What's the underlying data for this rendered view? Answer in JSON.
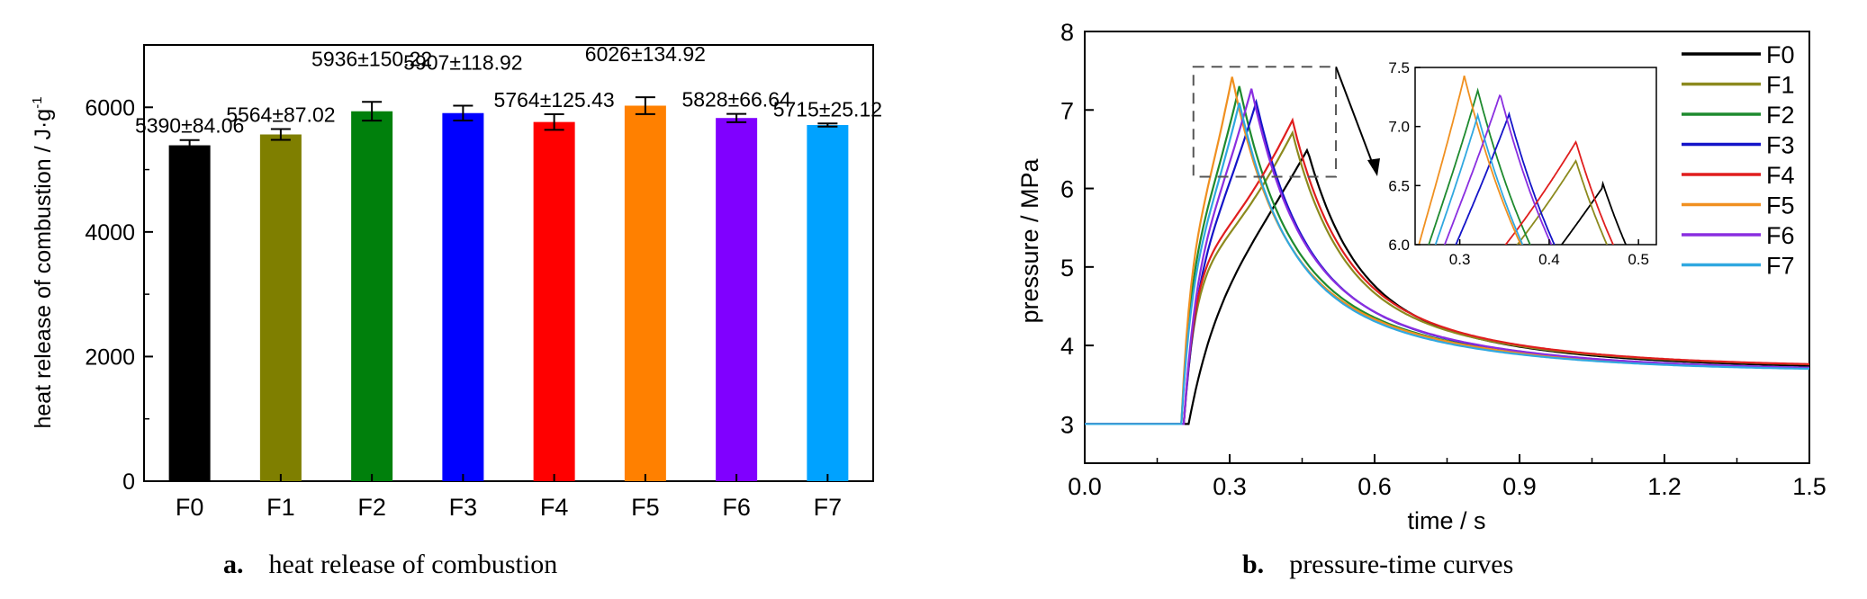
{
  "chart_data": [
    {
      "type": "bar",
      "caption_letter": "a.",
      "caption_text": "heat release of combustion",
      "ylabel": "heat release of combustion / J·g",
      "ylabel_sup": "-1",
      "ylim": [
        0,
        7000
      ],
      "yticks": [
        "0",
        "2000",
        "4000",
        "6000"
      ],
      "categories": [
        "F0",
        "F1",
        "F2",
        "F3",
        "F4",
        "F5",
        "F6",
        "F7"
      ],
      "values": [
        5390,
        5564,
        5936,
        5907,
        5764,
        6026,
        5828,
        5715
      ],
      "errors": [
        84.06,
        87.02,
        150.22,
        118.92,
        125.43,
        134.92,
        66.64,
        25.12
      ],
      "data_labels": [
        "5390±84.06",
        "5564±87.02",
        "5936±150.22",
        "5907±118.92",
        "5764±125.43",
        "6026±134.92",
        "5828±66.64",
        "5715±25.12"
      ],
      "colors": [
        "#000000",
        "#7f7f00",
        "#00800c",
        "#0000ff",
        "#ff0000",
        "#ff8000",
        "#8000ff",
        "#00a2ff"
      ],
      "grid": false
    },
    {
      "type": "line",
      "caption_letter": "b.",
      "caption_text": "pressure-time curves",
      "xlabel": "time / s",
      "ylabel": "pressure / MPa",
      "xlim": [
        0,
        1.5
      ],
      "ylim": [
        2.5,
        8
      ],
      "xticks": [
        "0.0",
        "0.3",
        "0.6",
        "0.9",
        "1.2",
        "1.5"
      ],
      "yticks": [
        "3",
        "4",
        "5",
        "6",
        "7",
        "8"
      ],
      "legend_position": "top-right",
      "grid": false,
      "inset": {
        "xlim": [
          0.25,
          0.52
        ],
        "ylim": [
          6.0,
          7.5
        ],
        "xticks": [
          "0.3",
          "0.4",
          "0.5"
        ],
        "yticks": [
          "6.0",
          "6.5",
          "7.0",
          "7.5"
        ]
      },
      "series": [
        {
          "name": "F0",
          "color": "#000000",
          "peak_time": 0.46,
          "peak_pressure": 6.52,
          "rise_start": 0.215,
          "early_slope": 5.5
        },
        {
          "name": "F1",
          "color": "#8c8a1e",
          "peak_time": 0.43,
          "peak_pressure": 6.71,
          "rise_start": 0.205,
          "early_slope": 14.0
        },
        {
          "name": "F2",
          "color": "#1e8a2e",
          "peak_time": 0.32,
          "peak_pressure": 7.31,
          "rise_start": 0.2,
          "early_slope": 16.0
        },
        {
          "name": "F3",
          "color": "#1414c8",
          "peak_time": 0.355,
          "peak_pressure": 7.11,
          "rise_start": 0.205,
          "early_slope": 12.0
        },
        {
          "name": "F4",
          "color": "#e01e1e",
          "peak_time": 0.43,
          "peak_pressure": 6.87,
          "rise_start": 0.205,
          "early_slope": 14.5
        },
        {
          "name": "F5",
          "color": "#f09020",
          "peak_time": 0.305,
          "peak_pressure": 7.43,
          "rise_start": 0.2,
          "early_slope": 18.0
        },
        {
          "name": "F6",
          "color": "#8a2ee0",
          "peak_time": 0.345,
          "peak_pressure": 7.28,
          "rise_start": 0.205,
          "early_slope": 13.0
        },
        {
          "name": "F7",
          "color": "#30a8e0",
          "peak_time": 0.32,
          "peak_pressure": 7.1,
          "rise_start": 0.2,
          "early_slope": 15.0
        }
      ],
      "final_pressure": {
        "F0": 3.7,
        "F1": 3.72,
        "F2": 3.68,
        "F3": 3.68,
        "F4": 3.72,
        "F5": 3.68,
        "F6": 3.68,
        "F7": 3.67
      }
    }
  ]
}
